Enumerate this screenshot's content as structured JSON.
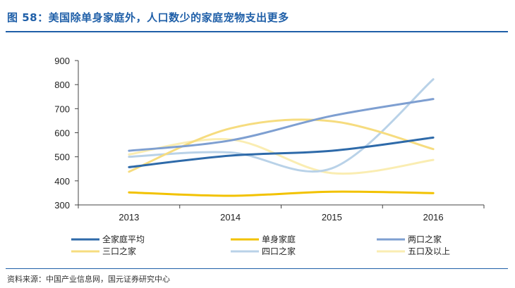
{
  "header": {
    "title": "图 58：美国除单身家庭外，人口数少的家庭宠物支出更多"
  },
  "footer": {
    "source": "资料来源：中国产业信息网，国元证券研究中心"
  },
  "chart_data": {
    "type": "line",
    "title": "",
    "xlabel": "",
    "ylabel": "",
    "categories": [
      "2013",
      "2014",
      "2015",
      "2016"
    ],
    "ylim": [
      300,
      900
    ],
    "yticks": [
      300,
      400,
      500,
      600,
      700,
      800,
      900
    ],
    "grid": false,
    "legend_position": "bottom",
    "series": [
      {
        "name": "全家庭平均",
        "color": "#2e6aa9",
        "values": [
          457,
          505,
          525,
          580
        ]
      },
      {
        "name": "单身家庭",
        "color": "#f2c200",
        "values": [
          352,
          338,
          355,
          349
        ]
      },
      {
        "name": "两口之家",
        "color": "#7e9fd1",
        "values": [
          525,
          568,
          670,
          740
        ]
      },
      {
        "name": "三口之家",
        "color": "#f6dc7f",
        "values": [
          438,
          618,
          648,
          532
        ]
      },
      {
        "name": "四口之家",
        "color": "#b9d2e8",
        "values": [
          500,
          518,
          452,
          822
        ]
      },
      {
        "name": "五口及以上",
        "color": "#faedb2",
        "values": [
          510,
          572,
          432,
          487
        ]
      }
    ]
  }
}
